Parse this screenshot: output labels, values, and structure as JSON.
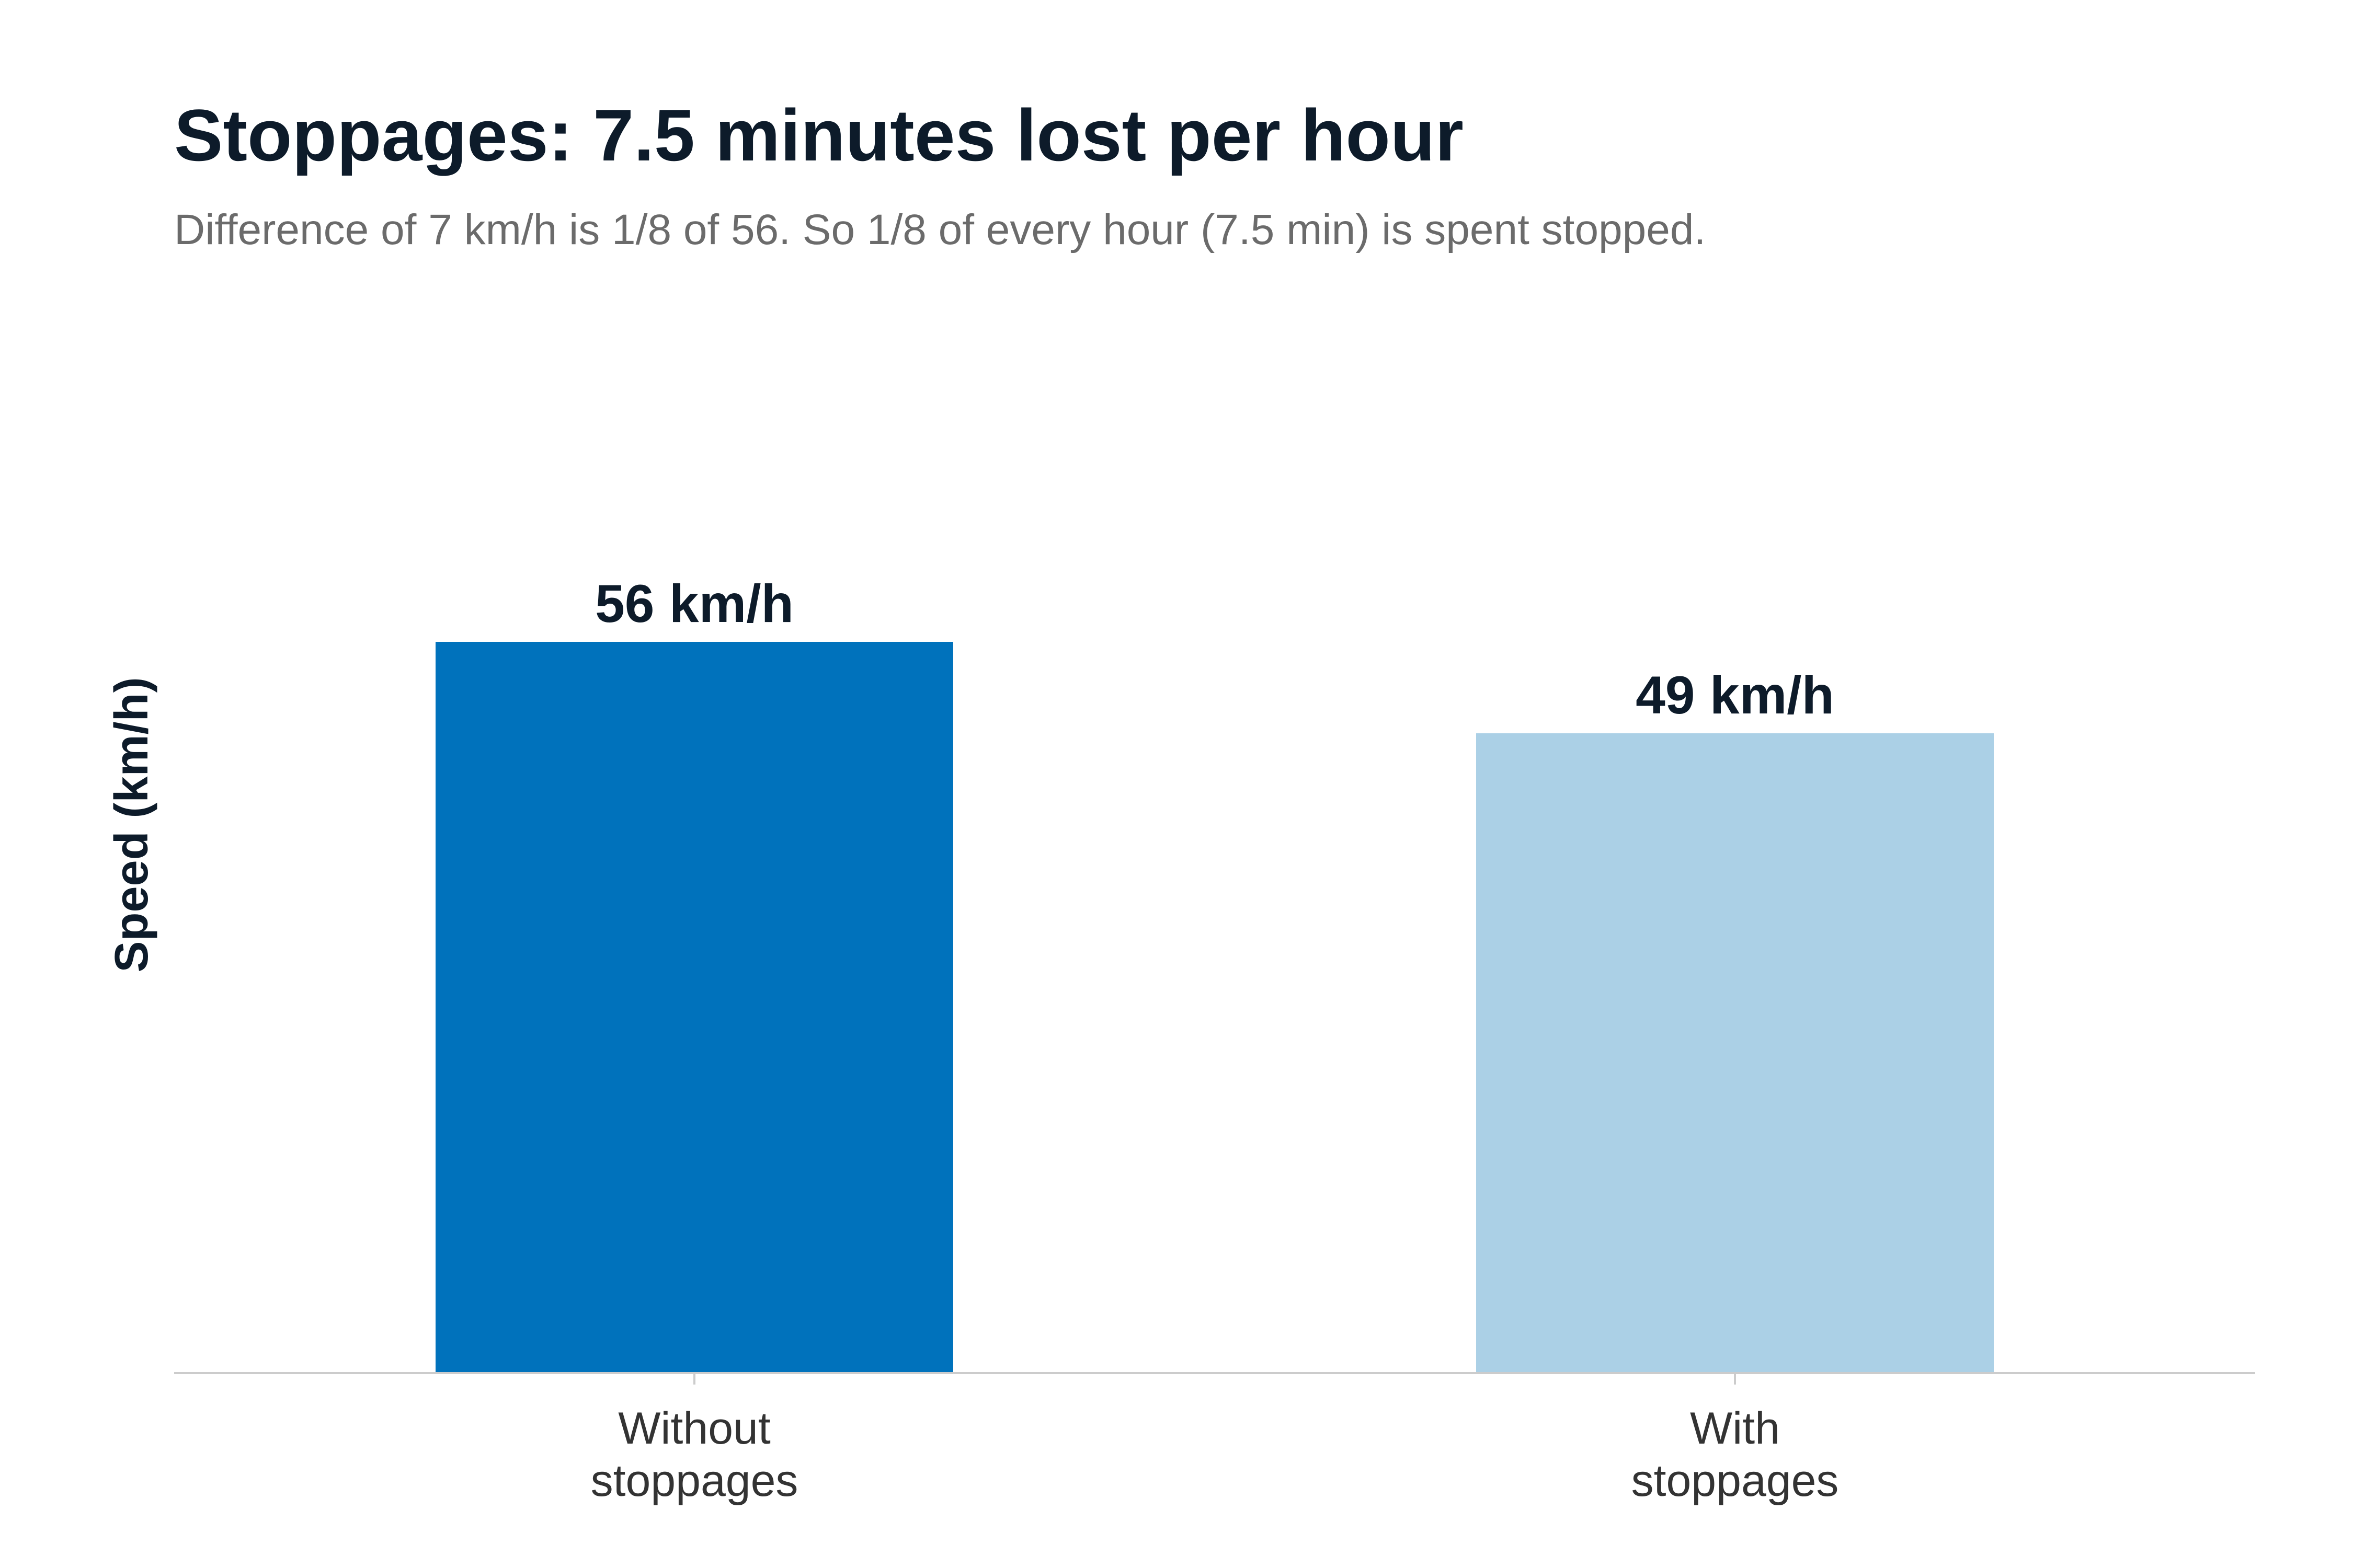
{
  "chart_data": {
    "type": "bar",
    "title": "Stoppages: 7.5 minutes lost per hour",
    "subtitle": "Difference of 7 km/h is 1/8 of 56. So 1/8 of every hour (7.5 min) is spent stopped.",
    "xlabel": "",
    "ylabel": "Speed (km/h)",
    "categories": [
      [
        "Without",
        "stoppages"
      ],
      [
        "With",
        "stoppages"
      ]
    ],
    "values": [
      56,
      49
    ],
    "data_labels": [
      "56 km/h",
      "49 km/h"
    ],
    "colors": [
      "#0072bc",
      "#abd0e6"
    ],
    "ylim": [
      0,
      56
    ],
    "grid": false,
    "legend": "none"
  }
}
